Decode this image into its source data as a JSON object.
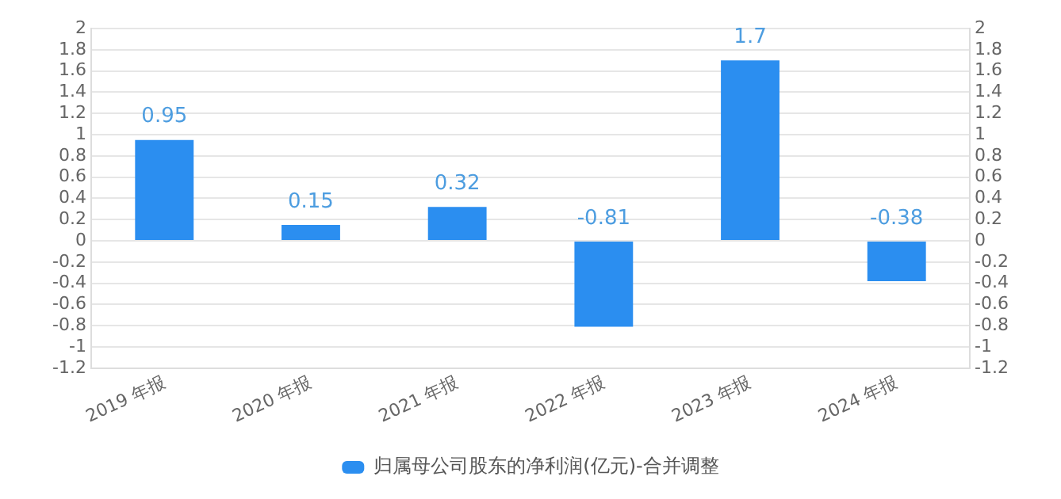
{
  "chart_data": {
    "type": "bar",
    "categories": [
      "2019 年报",
      "2020 年报",
      "2021 年报",
      "2022 年报",
      "2023 年报",
      "2024 年报"
    ],
    "series": [
      {
        "name": "归属母公司股东的净利润(亿元)-合并调整",
        "color": "#2b8ef0",
        "values": [
          0.95,
          0.15,
          0.32,
          -0.81,
          1.7,
          -0.38
        ]
      }
    ],
    "ylim": [
      -1.2,
      2
    ],
    "yticks": [
      2,
      1.8,
      1.6,
      1.4,
      1.2,
      1,
      0.8,
      0.6,
      0.4,
      0.2,
      0,
      -0.2,
      -0.4,
      -0.6,
      -0.8,
      -1,
      -1.2
    ],
    "y2lim": [
      -1.2,
      2
    ],
    "y2ticks": [
      2,
      1.8,
      1.6,
      1.4,
      1.2,
      1,
      0.8,
      0.6,
      0.4,
      0.2,
      0,
      -0.2,
      -0.4,
      -0.6,
      -0.8,
      -1,
      -1.2
    ],
    "grid": "y",
    "legend": "bottom",
    "data_labels": true
  }
}
